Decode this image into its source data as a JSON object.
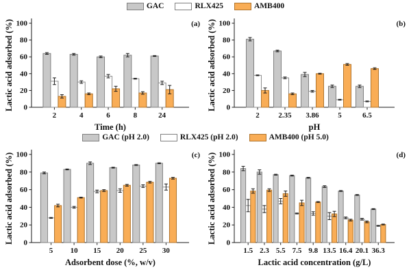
{
  "legends": {
    "top": {
      "items": [
        {
          "label": "GAC",
          "fill": "#c8c8c8",
          "stroke": "#7f7f7f"
        },
        {
          "label": "RLX425",
          "fill": "#ffffff",
          "stroke": "#7f7f7f"
        },
        {
          "label": "AMB400",
          "fill": "#f9ad56",
          "stroke": "#b0742c"
        }
      ]
    },
    "middle": {
      "items": [
        {
          "label": "GAC (pH 2.0)",
          "fill": "#c8c8c8",
          "stroke": "#7f7f7f"
        },
        {
          "label": "RLX425 (pH 2.0)",
          "fill": "#ffffff",
          "stroke": "#7f7f7f"
        },
        {
          "label": "AMB400 (pH 5.0)",
          "fill": "#f9ad56",
          "stroke": "#b0742c"
        }
      ]
    }
  },
  "colors": {
    "gac_fill": "#c8c8c8",
    "gac_stroke": "#7f7f7f",
    "rlx_fill": "#ffffff",
    "rlx_stroke": "#8c8c8c",
    "amb_fill": "#f9ad56",
    "amb_stroke": "#b0742c",
    "axis": "#1a1a1a"
  },
  "chart_data": [
    {
      "id": "a",
      "type": "bar",
      "panel_label": "(a)",
      "xlabel": "Time (h)",
      "ylabel": "Lactic acid adsorbed (%)",
      "ylim": [
        0,
        100
      ],
      "yticks": [
        0,
        20,
        40,
        60,
        80,
        100
      ],
      "grid": false,
      "categories": [
        "2",
        "4",
        "6",
        "8",
        "24"
      ],
      "series": [
        {
          "name": "GAC",
          "fill": "#c8c8c8",
          "stroke": "#7f7f7f",
          "values": [
            64,
            63,
            60,
            62,
            61
          ],
          "errors": [
            1,
            1,
            1,
            2,
            0.5
          ]
        },
        {
          "name": "RLX425",
          "fill": "#ffffff",
          "stroke": "#8c8c8c",
          "values": [
            31,
            30,
            37,
            34,
            29
          ],
          "errors": [
            4,
            1.5,
            2,
            0.5,
            2
          ]
        },
        {
          "name": "AMB400",
          "fill": "#f9ad56",
          "stroke": "#b0742c",
          "values": [
            13,
            16,
            22,
            17,
            21
          ],
          "errors": [
            2,
            1,
            3,
            1.5,
            5
          ]
        }
      ]
    },
    {
      "id": "b",
      "type": "bar",
      "panel_label": "(b)",
      "xlabel": "pH",
      "ylabel": "Lactic acid adsorbed (%)",
      "ylim": [
        0,
        100
      ],
      "yticks": [
        0,
        20,
        40,
        60,
        80,
        100
      ],
      "grid": false,
      "categories": [
        "2",
        "2.35",
        "3.86",
        "5",
        "6.5"
      ],
      "series": [
        {
          "name": "GAC",
          "fill": "#c8c8c8",
          "stroke": "#7f7f7f",
          "values": [
            81,
            67,
            39,
            25,
            25
          ],
          "errors": [
            2,
            1,
            2.5,
            1.5,
            1.5
          ]
        },
        {
          "name": "RLX425",
          "fill": "#ffffff",
          "stroke": "#8c8c8c",
          "values": [
            38,
            35,
            19,
            9,
            7
          ],
          "errors": [
            0.5,
            1,
            1,
            0.5,
            0.5
          ]
        },
        {
          "name": "AMB400",
          "fill": "#f9ad56",
          "stroke": "#b0742c",
          "values": [
            20,
            16,
            40,
            51,
            46
          ],
          "errors": [
            3,
            1,
            0.5,
            1,
            1
          ]
        }
      ]
    },
    {
      "id": "c",
      "type": "bar",
      "panel_label": "(c)",
      "xlabel": "Adsorbent dose (%, w/v)",
      "ylabel": "Lactic acid adsorbed (%)",
      "ylim": [
        0,
        100
      ],
      "yticks": [
        0,
        20,
        40,
        60,
        80,
        100
      ],
      "grid": false,
      "categories": [
        "5",
        "10",
        "15",
        "20",
        "25",
        "30"
      ],
      "series": [
        {
          "name": "GAC (pH 2.0)",
          "fill": "#c8c8c8",
          "stroke": "#7f7f7f",
          "values": [
            79,
            83,
            90,
            85,
            88,
            90
          ],
          "errors": [
            1,
            0.5,
            1.5,
            0.5,
            0.5,
            0.5
          ]
        },
        {
          "name": "RLX425 (pH 2.0)",
          "fill": "#ffffff",
          "stroke": "#8c8c8c",
          "values": [
            28,
            40,
            58,
            59,
            64,
            63
          ],
          "errors": [
            0.5,
            1,
            1.5,
            2,
            1.5,
            3.5
          ]
        },
        {
          "name": "AMB400 (pH 5.0)",
          "fill": "#f9ad56",
          "stroke": "#b0742c",
          "values": [
            42,
            51,
            59,
            65,
            68.5,
            73
          ],
          "errors": [
            1.5,
            0.5,
            1,
            1,
            1,
            1
          ]
        }
      ]
    },
    {
      "id": "d",
      "type": "bar",
      "panel_label": "(d)",
      "xlabel": "Lactic acid concentration (g/L)",
      "ylabel": "Lactic acid adsorbed (%)",
      "ylim": [
        0,
        100
      ],
      "yticks": [
        0,
        20,
        40,
        60,
        80,
        100
      ],
      "grid": false,
      "categories": [
        "1.5",
        "2.3",
        "5.5",
        "7.5",
        "9.8",
        "13.5",
        "16.4",
        "20.1",
        "36.3"
      ],
      "series": [
        {
          "name": "GAC (pH 2.0)",
          "fill": "#c8c8c8",
          "stroke": "#7f7f7f",
          "values": [
            84,
            80,
            77,
            76,
            73.5,
            63.5,
            58.5,
            54,
            38
          ],
          "errors": [
            2.5,
            2.5,
            0.5,
            0.5,
            0.5,
            1,
            0.5,
            0.5,
            0.5
          ]
        },
        {
          "name": "RLX425 (pH 2.0)",
          "fill": "#ffffff",
          "stroke": "#8c8c8c",
          "values": [
            42,
            38,
            47,
            33,
            33,
            30,
            28,
            26.5,
            19
          ],
          "errors": [
            7,
            4,
            3,
            0.5,
            2,
            4,
            1,
            1,
            0.5
          ]
        },
        {
          "name": "AMB400 (pH 5.0)",
          "fill": "#f9ad56",
          "stroke": "#b0742c",
          "values": [
            58.5,
            59.5,
            55.5,
            45,
            46,
            32.5,
            25.5,
            23.5,
            20.5
          ],
          "errors": [
            2.5,
            1.5,
            3,
            3,
            0.5,
            3,
            1,
            1,
            0.5
          ]
        }
      ]
    }
  ]
}
